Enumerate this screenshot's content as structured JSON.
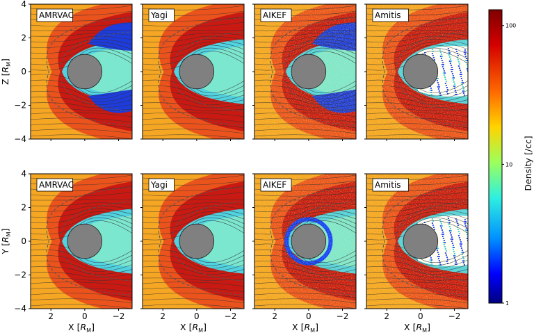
{
  "chart_data": {
    "type": "heatmap",
    "rows": [
      {
        "ylabel": "Z [R_M]",
        "ylabel_main": "Z [",
        "ylabel_sub": "M",
        "ylabel_end": "]",
        "panels": [
          {
            "title": "AMRVAC"
          },
          {
            "title": "Yagi"
          },
          {
            "title": "AIKEF"
          },
          {
            "title": "Amitis"
          }
        ]
      },
      {
        "ylabel": "Y [R_M]",
        "ylabel_main": "Y [",
        "ylabel_sub": "M",
        "ylabel_end": "]",
        "panels": [
          {
            "title": "AMRVAC"
          },
          {
            "title": "Yagi"
          },
          {
            "title": "AIKEF"
          },
          {
            "title": "Amitis"
          }
        ]
      }
    ],
    "xlabel_main": "X [",
    "xlabel_sub": "M",
    "xlabel_end": "]",
    "x_ticks": [
      "2",
      "0",
      "−2"
    ],
    "x_tick_values": [
      2,
      0,
      -2
    ],
    "xlim": [
      3.2,
      -2.8
    ],
    "y_ticks": [
      "4",
      "2",
      "0",
      "−2",
      "−4"
    ],
    "y_tick_values": [
      4,
      2,
      0,
      -2,
      -4
    ],
    "ylim": [
      -4,
      4
    ],
    "colorbar": {
      "label": "Density [/cc]",
      "scale": "log",
      "range": [
        1,
        130
      ],
      "ticks": [
        "100",
        "10",
        "1"
      ],
      "tick_values": [
        100,
        10,
        1
      ]
    },
    "planet_radius": 1.0,
    "colors": {
      "solar_wind": "#f5a623",
      "sheath": "#e0281e",
      "tail": "#50d2e0",
      "lobe": "#1e3cdc",
      "planet": "#808080"
    }
  }
}
